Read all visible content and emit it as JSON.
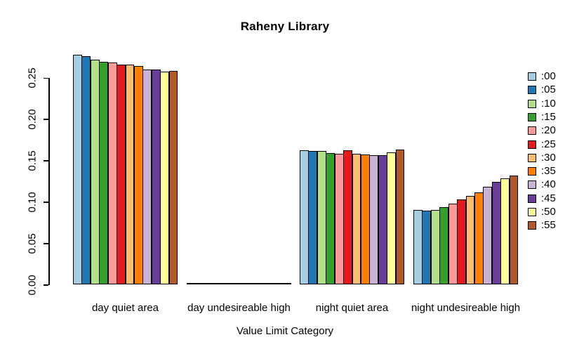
{
  "chart_data": {
    "type": "bar",
    "title": "Raheny Library",
    "xlabel": "Value Limit Category",
    "ylabel": "",
    "grid": false,
    "legend_position": "right",
    "ylim": [
      0,
      0.28
    ],
    "yticks": [
      0,
      0.05,
      0.1,
      0.15,
      0.2,
      0.25
    ],
    "ytick_labels": [
      "0.00",
      "0.05",
      "0.10",
      "0.15",
      "0.20",
      "0.25"
    ],
    "categories": [
      "day quiet area",
      "day undesireable high",
      "night quiet area",
      "night undesireable high"
    ],
    "series": [
      {
        "name": ":00",
        "color": "#A6CEE3",
        "values": [
          0.278,
          0.002,
          0.162,
          0.09
        ]
      },
      {
        "name": ":05",
        "color": "#1F78B4",
        "values": [
          0.276,
          0.002,
          0.161,
          0.089
        ]
      },
      {
        "name": ":10",
        "color": "#B2DF8A",
        "values": [
          0.272,
          0.002,
          0.161,
          0.09
        ]
      },
      {
        "name": ":15",
        "color": "#33A02C",
        "values": [
          0.269,
          0.002,
          0.159,
          0.093
        ]
      },
      {
        "name": ":20",
        "color": "#FB9A99",
        "values": [
          0.268,
          0.002,
          0.158,
          0.098
        ]
      },
      {
        "name": ":25",
        "color": "#E31A1C",
        "values": [
          0.266,
          0.002,
          0.162,
          0.103
        ]
      },
      {
        "name": ":30",
        "color": "#FDBF6F",
        "values": [
          0.266,
          0.002,
          0.158,
          0.107
        ]
      },
      {
        "name": ":35",
        "color": "#FF7F00",
        "values": [
          0.264,
          0.002,
          0.157,
          0.111
        ]
      },
      {
        "name": ":40",
        "color": "#CAB2D6",
        "values": [
          0.26,
          0.002,
          0.156,
          0.118
        ]
      },
      {
        "name": ":45",
        "color": "#6A3D9A",
        "values": [
          0.26,
          0.002,
          0.156,
          0.124
        ]
      },
      {
        "name": ":50",
        "color": "#FFFF99",
        "values": [
          0.257,
          0.002,
          0.16,
          0.128
        ]
      },
      {
        "name": ":55",
        "color": "#B15928",
        "values": [
          0.258,
          0.002,
          0.163,
          0.132
        ]
      }
    ]
  }
}
